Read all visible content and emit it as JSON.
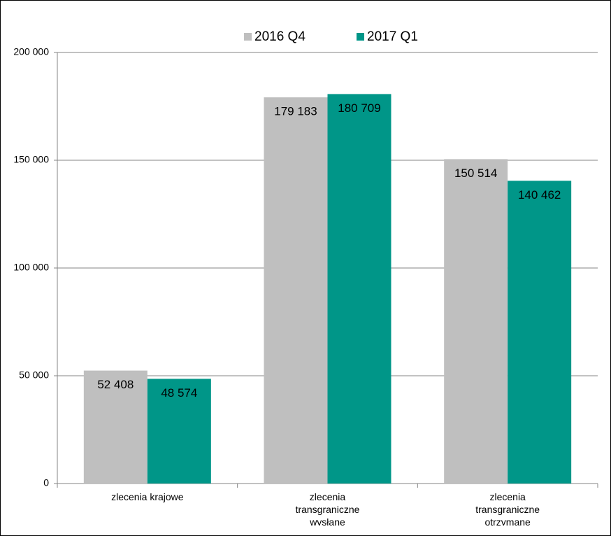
{
  "chart_data": {
    "type": "bar",
    "categories": [
      "zlecenia krajowe",
      "zlecenia transgraniczne wysłane",
      "zlecenia transgraniczne otrzymane"
    ],
    "series": [
      {
        "name": "2016 Q4",
        "color": "#bfbfbf",
        "values": [
          52408,
          179183,
          150514
        ],
        "value_labels": [
          "52 408",
          "179 183",
          "150 514"
        ]
      },
      {
        "name": "2017 Q1",
        "color": "#009688",
        "values": [
          48574,
          180709,
          140462
        ],
        "value_labels": [
          "48 574",
          "180 709",
          "140 462"
        ]
      }
    ],
    "ylim": [
      0,
      200000
    ],
    "yticks": [
      0,
      {
        "value": 50000,
        "label": "50 000"
      },
      {
        "value": 100000,
        "label": "100 000"
      },
      {
        "value": 150000,
        "label": "150 000"
      },
      {
        "value": 200000,
        "label": "200 000"
      }
    ],
    "grid": true,
    "legend": "top"
  }
}
